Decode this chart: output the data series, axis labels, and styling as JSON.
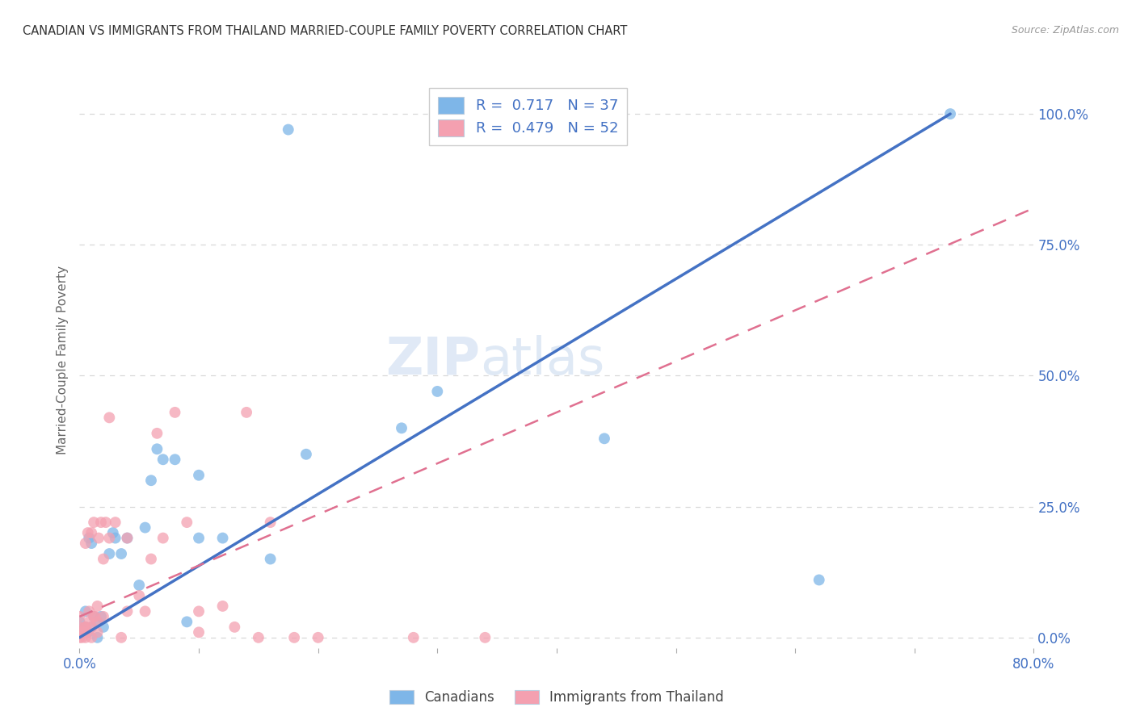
{
  "title": "CANADIAN VS IMMIGRANTS FROM THAILAND MARRIED-COUPLE FAMILY POVERTY CORRELATION CHART",
  "source": "Source: ZipAtlas.com",
  "ylabel": "Married-Couple Family Poverty",
  "ytick_labels": [
    "0.0%",
    "25.0%",
    "50.0%",
    "75.0%",
    "100.0%"
  ],
  "ytick_values": [
    0,
    0.25,
    0.5,
    0.75,
    1.0
  ],
  "xlim": [
    0,
    0.8
  ],
  "ylim": [
    -0.02,
    1.08
  ],
  "watermark_zip": "ZIP",
  "watermark_atlas": "atlas",
  "legend_R1": "R =  0.717",
  "legend_N1": "N = 37",
  "legend_R2": "R =  0.479",
  "legend_N2": "N = 52",
  "canadians_color": "#7eb6e8",
  "thailand_color": "#f4a0b0",
  "canadians_x": [
    0.0,
    0.0,
    0.003,
    0.005,
    0.005,
    0.007,
    0.008,
    0.01,
    0.01,
    0.012,
    0.015,
    0.015,
    0.018,
    0.02,
    0.025,
    0.028,
    0.03,
    0.035,
    0.04,
    0.05,
    0.055,
    0.06,
    0.065,
    0.07,
    0.08,
    0.09,
    0.1,
    0.1,
    0.12,
    0.16,
    0.175,
    0.19,
    0.27,
    0.3,
    0.44,
    0.62,
    0.73
  ],
  "canadians_y": [
    0.01,
    0.03,
    0.01,
    0.02,
    0.05,
    0.01,
    0.19,
    0.02,
    0.18,
    0.04,
    0.0,
    0.03,
    0.04,
    0.02,
    0.16,
    0.2,
    0.19,
    0.16,
    0.19,
    0.1,
    0.21,
    0.3,
    0.36,
    0.34,
    0.34,
    0.03,
    0.31,
    0.19,
    0.19,
    0.15,
    0.97,
    0.35,
    0.4,
    0.47,
    0.38,
    0.11,
    1.0
  ],
  "thailand_x": [
    0.0,
    0.0,
    0.0,
    0.0,
    0.002,
    0.003,
    0.004,
    0.005,
    0.005,
    0.005,
    0.006,
    0.007,
    0.008,
    0.008,
    0.01,
    0.01,
    0.01,
    0.012,
    0.012,
    0.013,
    0.015,
    0.015,
    0.015,
    0.016,
    0.018,
    0.02,
    0.02,
    0.022,
    0.025,
    0.025,
    0.03,
    0.035,
    0.04,
    0.04,
    0.05,
    0.055,
    0.06,
    0.065,
    0.07,
    0.08,
    0.09,
    0.1,
    0.1,
    0.12,
    0.13,
    0.14,
    0.15,
    0.16,
    0.18,
    0.2,
    0.28,
    0.34
  ],
  "thailand_y": [
    0.0,
    0.01,
    0.02,
    0.04,
    0.0,
    0.01,
    0.02,
    0.0,
    0.02,
    0.18,
    0.01,
    0.2,
    0.03,
    0.05,
    0.0,
    0.02,
    0.2,
    0.04,
    0.22,
    0.04,
    0.01,
    0.03,
    0.06,
    0.19,
    0.22,
    0.04,
    0.15,
    0.22,
    0.19,
    0.42,
    0.22,
    0.0,
    0.05,
    0.19,
    0.08,
    0.05,
    0.15,
    0.39,
    0.19,
    0.43,
    0.22,
    0.01,
    0.05,
    0.06,
    0.02,
    0.43,
    0.0,
    0.22,
    0.0,
    0.0,
    0.0,
    0.0
  ],
  "canadian_trend_x": [
    0.0,
    0.73
  ],
  "canadian_trend_y": [
    0.0,
    1.0
  ],
  "thailand_trend_x": [
    0.0,
    0.8
  ],
  "thailand_trend_y": [
    0.04,
    0.82
  ],
  "background_color": "#ffffff",
  "grid_color": "#d8d8d8",
  "title_color": "#333333",
  "axis_color": "#4472c4"
}
